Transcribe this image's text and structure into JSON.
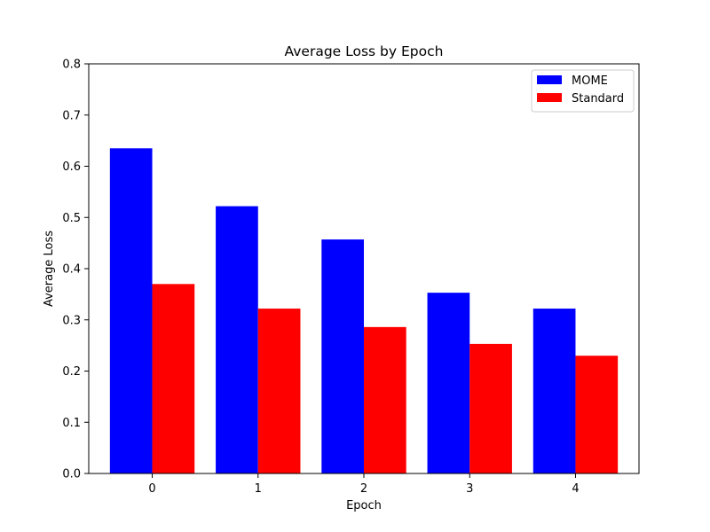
{
  "chart_data": {
    "type": "bar",
    "title": "Average Loss by Epoch",
    "xlabel": "Epoch",
    "ylabel": "Average Loss",
    "categories": [
      "0",
      "1",
      "2",
      "3",
      "4"
    ],
    "series": [
      {
        "name": "MOME",
        "values": [
          0.635,
          0.522,
          0.457,
          0.353,
          0.322
        ],
        "color": "#0000ff"
      },
      {
        "name": "Standard",
        "values": [
          0.37,
          0.322,
          0.286,
          0.253,
          0.23
        ],
        "color": "#ff0000"
      }
    ],
    "ylim": [
      0,
      0.8
    ],
    "yticks": [
      "0.0",
      "0.1",
      "0.2",
      "0.3",
      "0.4",
      "0.5",
      "0.6",
      "0.7",
      "0.8"
    ],
    "ytick_values": [
      0,
      0.1,
      0.2,
      0.3,
      0.4,
      0.5,
      0.6,
      0.7,
      0.8
    ],
    "grid": false,
    "legend_position": "top-right"
  }
}
